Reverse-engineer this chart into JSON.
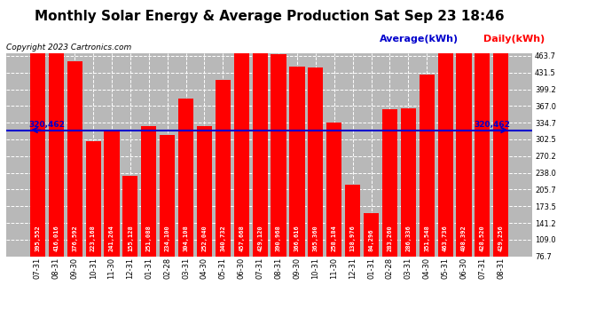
{
  "title": "Monthly Solar Energy & Average Production Sat Sep 23 18:46",
  "copyright": "Copyright 2023 Cartronics.com",
  "legend_average": "Average(kWh)",
  "legend_daily": "Daily(kWh)",
  "categories": [
    "07-31",
    "08-31",
    "09-30",
    "10-31",
    "11-30",
    "12-31",
    "01-31",
    "02-28",
    "03-31",
    "04-30",
    "05-31",
    "06-30",
    "07-31",
    "08-31",
    "09-30",
    "10-31",
    "11-30",
    "12-31",
    "01-31",
    "02-28",
    "03-31",
    "04-30",
    "05-31",
    "06-30",
    "07-31",
    "08-31"
  ],
  "values": [
    395.552,
    416.016,
    376.592,
    223.168,
    241.264,
    155.128,
    251.088,
    234.1,
    304.108,
    252.04,
    340.732,
    457.668,
    429.12,
    390.968,
    366.616,
    365.36,
    258.184,
    138.976,
    84.296,
    283.26,
    286.336,
    351.548,
    463.736,
    408.392,
    428.52,
    429.256
  ],
  "average": 320.462,
  "bar_color": "#ff0000",
  "avg_line_color": "#0000cc",
  "bg_color": "#ffffff",
  "plot_bg_color": "#b8b8b8",
  "ylim_min": 76.7,
  "ylim_max": 463.7,
  "yticks": [
    76.7,
    109.0,
    141.2,
    173.5,
    205.7,
    238.0,
    270.2,
    302.5,
    334.7,
    367.0,
    399.2,
    431.5,
    463.7
  ],
  "title_fontsize": 11,
  "copyright_fontsize": 6.5,
  "label_fontsize": 5.0,
  "tick_fontsize": 6.0,
  "avg_fontsize": 6.5,
  "legend_fontsize": 8.0
}
